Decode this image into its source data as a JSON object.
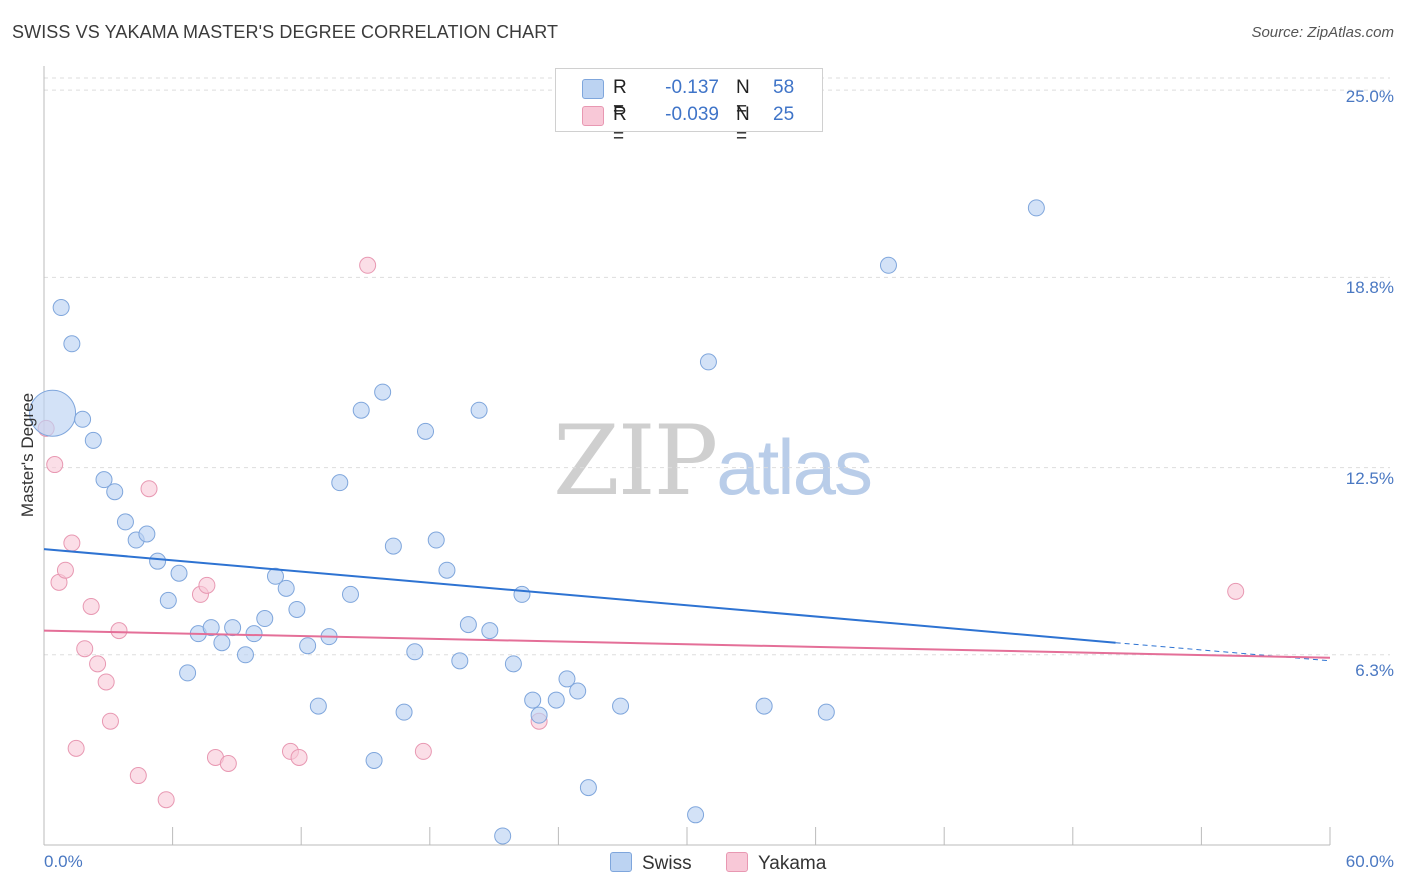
{
  "header": {
    "title": "SWISS VS YAKAMA MASTER'S DEGREE CORRELATION CHART",
    "source": "Source: ZipAtlas.com"
  },
  "watermark": {
    "part1": "ZIP",
    "part2": "atlas"
  },
  "legend_top": [
    {
      "r_label": "R =",
      "r_value": "-0.137",
      "n_label": "N =",
      "n_value": "58"
    },
    {
      "r_label": "R =",
      "r_value": "-0.039",
      "n_label": "N =",
      "n_value": "25"
    }
  ],
  "legend_bottom": [
    {
      "label": "Swiss"
    },
    {
      "label": "Yakama"
    }
  ],
  "colors": {
    "swiss_fill": "#bcd3f2",
    "swiss_stroke": "#7fa6dc",
    "swiss_line": "#2e73d2",
    "yakama_fill": "#f8c8d7",
    "yakama_stroke": "#e898b2",
    "yakama_line": "#e46f98",
    "tick_text": "#4a78c2",
    "grid": "#dddddd"
  },
  "chart_data": {
    "type": "scatter",
    "title": "SWISS VS YAKAMA MASTER'S DEGREE CORRELATION CHART",
    "xlabel": "",
    "ylabel": "Master's Degree",
    "xlim": [
      0,
      60
    ],
    "ylim": [
      0,
      25.8
    ],
    "x_tick_labels": [
      "0.0%",
      "60.0%"
    ],
    "y_ticks": [
      6.3,
      12.5,
      18.8,
      25.0
    ],
    "y_tick_labels": [
      "6.3%",
      "12.5%",
      "18.8%",
      "25.0%"
    ],
    "grid": "horizontal dashed",
    "legend_placement": "top-center and bottom",
    "series": [
      {
        "name": "Swiss",
        "r": -0.137,
        "n": 58,
        "trend": {
          "x0": 0,
          "y0": 9.8,
          "x1": 50,
          "y1": 6.7,
          "dashed_to_x": 60,
          "dashed_to_y": 6.1
        },
        "points": [
          [
            0.4,
            14.3,
            "large"
          ],
          [
            0.8,
            17.8
          ],
          [
            1.3,
            16.6
          ],
          [
            1.8,
            14.1
          ],
          [
            2.3,
            13.4
          ],
          [
            2.8,
            12.1
          ],
          [
            3.3,
            11.7
          ],
          [
            3.8,
            10.7
          ],
          [
            4.3,
            10.1
          ],
          [
            4.8,
            10.3
          ],
          [
            5.3,
            9.4
          ],
          [
            5.8,
            8.1
          ],
          [
            6.3,
            9.0
          ],
          [
            6.7,
            5.7
          ],
          [
            7.2,
            7.0
          ],
          [
            7.8,
            7.2
          ],
          [
            8.3,
            6.7
          ],
          [
            8.8,
            7.2
          ],
          [
            9.4,
            6.3
          ],
          [
            9.8,
            7.0
          ],
          [
            10.3,
            7.5
          ],
          [
            10.8,
            8.9
          ],
          [
            11.3,
            8.5
          ],
          [
            11.8,
            7.8
          ],
          [
            12.3,
            6.6
          ],
          [
            12.8,
            4.6
          ],
          [
            13.3,
            6.9
          ],
          [
            13.8,
            12.0
          ],
          [
            14.3,
            8.3
          ],
          [
            14.8,
            14.4
          ],
          [
            15.4,
            2.8
          ],
          [
            15.8,
            15.0
          ],
          [
            16.3,
            9.9
          ],
          [
            16.8,
            4.4
          ],
          [
            17.3,
            6.4
          ],
          [
            17.8,
            13.7
          ],
          [
            18.3,
            10.1
          ],
          [
            18.8,
            9.1
          ],
          [
            19.4,
            6.1
          ],
          [
            19.8,
            7.3
          ],
          [
            20.3,
            14.4
          ],
          [
            20.8,
            7.1
          ],
          [
            21.4,
            0.3
          ],
          [
            21.9,
            6.0
          ],
          [
            22.3,
            8.3
          ],
          [
            22.8,
            4.8
          ],
          [
            23.1,
            4.3
          ],
          [
            23.9,
            4.8
          ],
          [
            24.4,
            5.5
          ],
          [
            24.9,
            5.1
          ],
          [
            25.4,
            1.9
          ],
          [
            26.9,
            4.6
          ],
          [
            30.4,
            1.0
          ],
          [
            31.0,
            16.0
          ],
          [
            33.6,
            4.6
          ],
          [
            36.5,
            4.4
          ],
          [
            39.4,
            19.2
          ],
          [
            46.3,
            21.1
          ]
        ]
      },
      {
        "name": "Yakama",
        "r": -0.039,
        "n": 25,
        "trend": {
          "x0": 0,
          "y0": 7.1,
          "x1": 60,
          "y1": 6.2
        },
        "points": [
          [
            0.1,
            13.8
          ],
          [
            0.5,
            12.6
          ],
          [
            0.7,
            8.7
          ],
          [
            1.0,
            9.1
          ],
          [
            1.3,
            10.0
          ],
          [
            1.5,
            3.2
          ],
          [
            1.9,
            6.5
          ],
          [
            2.2,
            7.9
          ],
          [
            2.5,
            6.0
          ],
          [
            2.9,
            5.4
          ],
          [
            3.1,
            4.1
          ],
          [
            3.5,
            7.1
          ],
          [
            4.4,
            2.3
          ],
          [
            4.9,
            11.8
          ],
          [
            5.7,
            1.5
          ],
          [
            7.3,
            8.3
          ],
          [
            7.6,
            8.6
          ],
          [
            8.0,
            2.9
          ],
          [
            8.6,
            2.7
          ],
          [
            11.5,
            3.1
          ],
          [
            11.9,
            2.9
          ],
          [
            15.1,
            19.2
          ],
          [
            17.7,
            3.1
          ],
          [
            23.1,
            4.1
          ],
          [
            55.6,
            8.4
          ]
        ]
      }
    ]
  }
}
